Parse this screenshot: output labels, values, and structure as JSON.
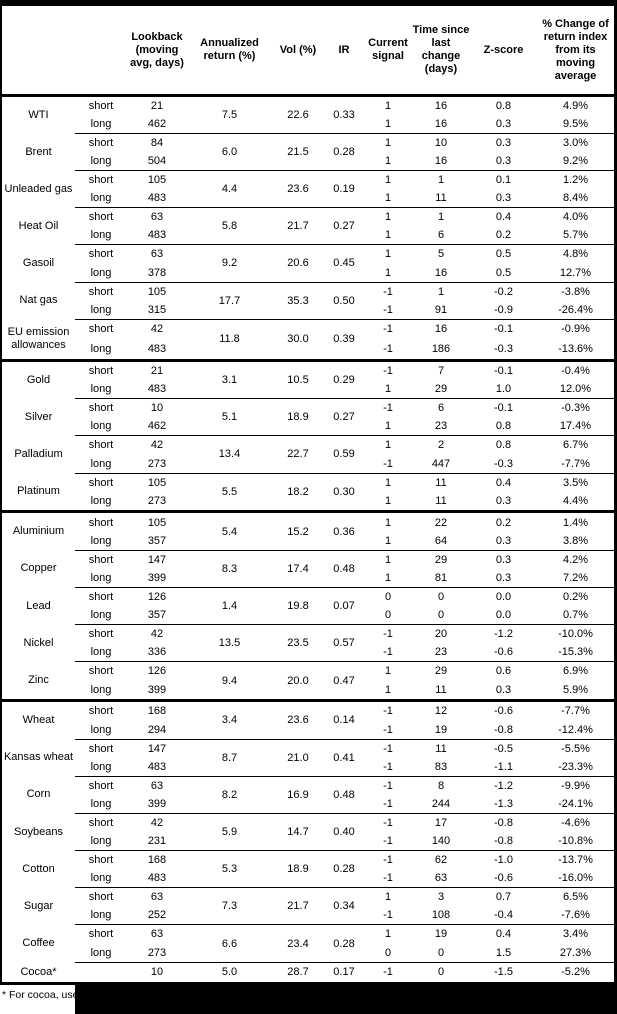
{
  "table": {
    "header_labels": [
      "",
      "",
      "Lookback\n(moving\navg, days)",
      "Annualized\nreturn (%)",
      "Vol (%)",
      "IR",
      "Current\nsignal",
      "Time since\nlast change\n(days)",
      "Z-score",
      "% Change of\nreturn index\nfrom its\nmoving\naverage"
    ],
    "commodities": [
      {
        "name": "WTI",
        "section": false,
        "ar": "7.5",
        "vol": "22.6",
        "ir": "0.33",
        "rows": [
          {
            "sl": "short",
            "lb": "21",
            "sig": "1",
            "t": "16",
            "z": "0.8",
            "pct": "4.9%"
          },
          {
            "sl": "long",
            "lb": "462",
            "sig": "1",
            "t": "16",
            "z": "0.3",
            "pct": "9.5%"
          }
        ]
      },
      {
        "name": "Brent",
        "section": false,
        "ar": "6.0",
        "vol": "21.5",
        "ir": "0.28",
        "rows": [
          {
            "sl": "short",
            "lb": "84",
            "sig": "1",
            "t": "10",
            "z": "0.3",
            "pct": "3.0%"
          },
          {
            "sl": "long",
            "lb": "504",
            "sig": "1",
            "t": "16",
            "z": "0.3",
            "pct": "9.2%"
          }
        ]
      },
      {
        "name": "Unleaded gas",
        "section": false,
        "ar": "4.4",
        "vol": "23.6",
        "ir": "0.19",
        "rows": [
          {
            "sl": "short",
            "lb": "105",
            "sig": "1",
            "t": "1",
            "z": "0.1",
            "pct": "1.2%"
          },
          {
            "sl": "long",
            "lb": "483",
            "sig": "1",
            "t": "11",
            "z": "0.3",
            "pct": "8.4%"
          }
        ]
      },
      {
        "name": "Heat Oil",
        "section": false,
        "ar": "5.8",
        "vol": "21.7",
        "ir": "0.27",
        "rows": [
          {
            "sl": "short",
            "lb": "63",
            "sig": "1",
            "t": "1",
            "z": "0.4",
            "pct": "4.0%"
          },
          {
            "sl": "long",
            "lb": "483",
            "sig": "1",
            "t": "6",
            "z": "0.2",
            "pct": "5.7%"
          }
        ]
      },
      {
        "name": "Gasoil",
        "section": false,
        "ar": "9.2",
        "vol": "20.6",
        "ir": "0.45",
        "rows": [
          {
            "sl": "short",
            "lb": "63",
            "sig": "1",
            "t": "5",
            "z": "0.5",
            "pct": "4.8%"
          },
          {
            "sl": "long",
            "lb": "378",
            "sig": "1",
            "t": "16",
            "z": "0.5",
            "pct": "12.7%"
          }
        ]
      },
      {
        "name": "Nat gas",
        "section": false,
        "ar": "17.7",
        "vol": "35.3",
        "ir": "0.50",
        "rows": [
          {
            "sl": "short",
            "lb": "105",
            "sig": "-1",
            "t": "1",
            "z": "-0.2",
            "pct": "-3.8%"
          },
          {
            "sl": "long",
            "lb": "315",
            "sig": "-1",
            "t": "91",
            "z": "-0.9",
            "pct": "-26.4%"
          }
        ]
      },
      {
        "name": "EU emission allowances",
        "section": false,
        "ar": "11.8",
        "vol": "30.0",
        "ir": "0.39",
        "rows": [
          {
            "sl": "short",
            "lb": "42",
            "sig": "-1",
            "t": "16",
            "z": "-0.1",
            "pct": "-0.9%"
          },
          {
            "sl": "long",
            "lb": "483",
            "sig": "-1",
            "t": "186",
            "z": "-0.3",
            "pct": "-13.6%"
          }
        ]
      },
      {
        "name": "Gold",
        "section": true,
        "ar": "3.1",
        "vol": "10.5",
        "ir": "0.29",
        "rows": [
          {
            "sl": "short",
            "lb": "21",
            "sig": "-1",
            "t": "7",
            "z": "-0.1",
            "pct": "-0.4%"
          },
          {
            "sl": "long",
            "lb": "483",
            "sig": "1",
            "t": "29",
            "z": "1.0",
            "pct": "12.0%"
          }
        ]
      },
      {
        "name": "Silver",
        "section": false,
        "ar": "5.1",
        "vol": "18.9",
        "ir": "0.27",
        "rows": [
          {
            "sl": "short",
            "lb": "10",
            "sig": "-1",
            "t": "6",
            "z": "-0.1",
            "pct": "-0.3%"
          },
          {
            "sl": "long",
            "lb": "462",
            "sig": "1",
            "t": "23",
            "z": "0.8",
            "pct": "17.4%"
          }
        ]
      },
      {
        "name": "Palladium",
        "section": false,
        "ar": "13.4",
        "vol": "22.7",
        "ir": "0.59",
        "rows": [
          {
            "sl": "short",
            "lb": "42",
            "sig": "1",
            "t": "2",
            "z": "0.8",
            "pct": "6.7%"
          },
          {
            "sl": "long",
            "lb": "273",
            "sig": "-1",
            "t": "447",
            "z": "-0.3",
            "pct": "-7.7%"
          }
        ]
      },
      {
        "name": "Platinum",
        "section": false,
        "ar": "5.5",
        "vol": "18.2",
        "ir": "0.30",
        "rows": [
          {
            "sl": "short",
            "lb": "105",
            "sig": "1",
            "t": "11",
            "z": "0.4",
            "pct": "3.5%"
          },
          {
            "sl": "long",
            "lb": "273",
            "sig": "1",
            "t": "11",
            "z": "0.3",
            "pct": "4.4%"
          }
        ]
      },
      {
        "name": "Aluminium",
        "section": true,
        "ar": "5.4",
        "vol": "15.2",
        "ir": "0.36",
        "rows": [
          {
            "sl": "short",
            "lb": "105",
            "sig": "1",
            "t": "22",
            "z": "0.2",
            "pct": "1.4%"
          },
          {
            "sl": "long",
            "lb": "357",
            "sig": "1",
            "t": "64",
            "z": "0.3",
            "pct": "3.8%"
          }
        ]
      },
      {
        "name": "Copper",
        "section": false,
        "ar": "8.3",
        "vol": "17.4",
        "ir": "0.48",
        "rows": [
          {
            "sl": "short",
            "lb": "147",
            "sig": "1",
            "t": "29",
            "z": "0.3",
            "pct": "4.2%"
          },
          {
            "sl": "long",
            "lb": "399",
            "sig": "1",
            "t": "81",
            "z": "0.3",
            "pct": "7.2%"
          }
        ]
      },
      {
        "name": "Lead",
        "section": false,
        "ar": "1.4",
        "vol": "19.8",
        "ir": "0.07",
        "rows": [
          {
            "sl": "short",
            "lb": "126",
            "sig": "0",
            "t": "0",
            "z": "0.0",
            "pct": "0.2%"
          },
          {
            "sl": "long",
            "lb": "357",
            "sig": "0",
            "t": "0",
            "z": "0.0",
            "pct": "0.7%"
          }
        ]
      },
      {
        "name": "Nickel",
        "section": false,
        "ar": "13.5",
        "vol": "23.5",
        "ir": "0.57",
        "rows": [
          {
            "sl": "short",
            "lb": "42",
            "sig": "-1",
            "t": "20",
            "z": "-1.2",
            "pct": "-10.0%"
          },
          {
            "sl": "long",
            "lb": "336",
            "sig": "-1",
            "t": "23",
            "z": "-0.6",
            "pct": "-15.3%"
          }
        ]
      },
      {
        "name": "Zinc",
        "section": false,
        "ar": "9.4",
        "vol": "20.0",
        "ir": "0.47",
        "rows": [
          {
            "sl": "short",
            "lb": "126",
            "sig": "1",
            "t": "29",
            "z": "0.6",
            "pct": "6.9%"
          },
          {
            "sl": "long",
            "lb": "399",
            "sig": "1",
            "t": "11",
            "z": "0.3",
            "pct": "5.9%"
          }
        ]
      },
      {
        "name": "Wheat",
        "section": true,
        "ar": "3.4",
        "vol": "23.6",
        "ir": "0.14",
        "rows": [
          {
            "sl": "short",
            "lb": "168",
            "sig": "-1",
            "t": "12",
            "z": "-0.6",
            "pct": "-7.7%"
          },
          {
            "sl": "long",
            "lb": "294",
            "sig": "-1",
            "t": "19",
            "z": "-0.8",
            "pct": "-12.4%"
          }
        ]
      },
      {
        "name": "Kansas wheat",
        "section": false,
        "ar": "8.7",
        "vol": "21.0",
        "ir": "0.41",
        "rows": [
          {
            "sl": "short",
            "lb": "147",
            "sig": "-1",
            "t": "11",
            "z": "-0.5",
            "pct": "-5.5%"
          },
          {
            "sl": "long",
            "lb": "483",
            "sig": "-1",
            "t": "83",
            "z": "-1.1",
            "pct": "-23.3%"
          }
        ]
      },
      {
        "name": "Corn",
        "section": false,
        "ar": "8.2",
        "vol": "16.9",
        "ir": "0.48",
        "rows": [
          {
            "sl": "short",
            "lb": "63",
            "sig": "-1",
            "t": "8",
            "z": "-1.2",
            "pct": "-9.9%"
          },
          {
            "sl": "long",
            "lb": "399",
            "sig": "-1",
            "t": "244",
            "z": "-1.3",
            "pct": "-24.1%"
          }
        ]
      },
      {
        "name": "Soybeans",
        "section": false,
        "ar": "5.9",
        "vol": "14.7",
        "ir": "0.40",
        "rows": [
          {
            "sl": "short",
            "lb": "42",
            "sig": "-1",
            "t": "17",
            "z": "-0.8",
            "pct": "-4.6%"
          },
          {
            "sl": "long",
            "lb": "231",
            "sig": "-1",
            "t": "140",
            "z": "-0.8",
            "pct": "-10.8%"
          }
        ]
      },
      {
        "name": "Cotton",
        "section": false,
        "ar": "5.3",
        "vol": "18.9",
        "ir": "0.28",
        "rows": [
          {
            "sl": "short",
            "lb": "168",
            "sig": "-1",
            "t": "62",
            "z": "-1.0",
            "pct": "-13.7%"
          },
          {
            "sl": "long",
            "lb": "483",
            "sig": "-1",
            "t": "63",
            "z": "-0.6",
            "pct": "-16.0%"
          }
        ]
      },
      {
        "name": "Sugar",
        "section": false,
        "ar": "7.3",
        "vol": "21.7",
        "ir": "0.34",
        "rows": [
          {
            "sl": "short",
            "lb": "63",
            "sig": "1",
            "t": "3",
            "z": "0.7",
            "pct": "6.5%"
          },
          {
            "sl": "long",
            "lb": "252",
            "sig": "-1",
            "t": "108",
            "z": "-0.4",
            "pct": "-7.6%"
          }
        ]
      },
      {
        "name": "Coffee",
        "section": false,
        "ar": "6.6",
        "vol": "23.4",
        "ir": "0.28",
        "rows": [
          {
            "sl": "short",
            "lb": "63",
            "sig": "1",
            "t": "19",
            "z": "0.4",
            "pct": "3.4%"
          },
          {
            "sl": "long",
            "lb": "273",
            "sig": "0",
            "t": "0",
            "z": "1.5",
            "pct": "27.3%"
          }
        ]
      },
      {
        "name": "Cocoa*",
        "section": false,
        "ar": "5.0",
        "vol": "28.7",
        "ir": "0.17",
        "rows": [
          {
            "sl": "",
            "lb": "10",
            "sig": "-1",
            "t": "0",
            "z": "-1.5",
            "pct": "-5.2%"
          }
        ]
      }
    ]
  },
  "footnote": "* For cocoa, uses o"
}
